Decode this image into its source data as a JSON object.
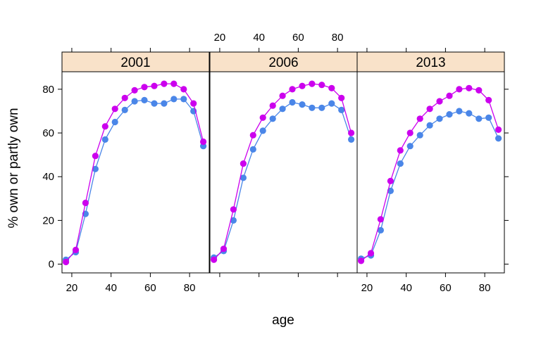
{
  "chart_data": {
    "type": "line",
    "layout": "trellis-3-panels",
    "xlabel": "age",
    "ylabel": "% own or partly own",
    "xlim": [
      15,
      90
    ],
    "ylim": [
      -4,
      88
    ],
    "x_ticks": [
      20,
      40,
      60,
      80
    ],
    "y_ticks": [
      0,
      20,
      40,
      60,
      80
    ],
    "x": [
      17,
      22,
      27,
      32,
      37,
      42,
      47,
      52,
      57,
      62,
      67,
      72,
      77,
      82,
      87
    ],
    "series_colors": [
      "#4a86e8",
      "#cc00ee"
    ],
    "panels": [
      {
        "label": "2001",
        "series": [
          {
            "values": [
              2,
              5.5,
              23,
              43.5,
              57,
              65,
              70.5,
              74.5,
              75,
              73.5,
              73.5,
              75.5,
              75.5,
              70,
              54
            ]
          },
          {
            "values": [
              1,
              6.5,
              28,
              49.5,
              63,
              71,
              76,
              79.5,
              81,
              81.5,
              82.5,
              82.5,
              80,
              73.5,
              56
            ]
          }
        ]
      },
      {
        "label": "2006",
        "series": [
          {
            "values": [
              3,
              6,
              20,
              39.5,
              52.5,
              61,
              66.5,
              71,
              74,
              73,
              71.5,
              71.5,
              73.5,
              70.5,
              57
            ]
          },
          {
            "values": [
              2,
              7,
              25,
              46,
              59,
              67,
              72.5,
              77,
              80,
              81.5,
              82.5,
              82,
              80.5,
              76,
              60
            ]
          }
        ]
      },
      {
        "label": "2013",
        "series": [
          {
            "values": [
              2.5,
              4,
              15.5,
              33.5,
              46,
              54,
              59,
              63.5,
              66.5,
              68.5,
              70,
              69,
              66.5,
              67,
              57.5
            ]
          },
          {
            "values": [
              1.5,
              5,
              20.5,
              38,
              52,
              60,
              66.5,
              71,
              74.5,
              77,
              80,
              80.5,
              79.5,
              75,
              61.5
            ]
          }
        ]
      }
    ]
  }
}
